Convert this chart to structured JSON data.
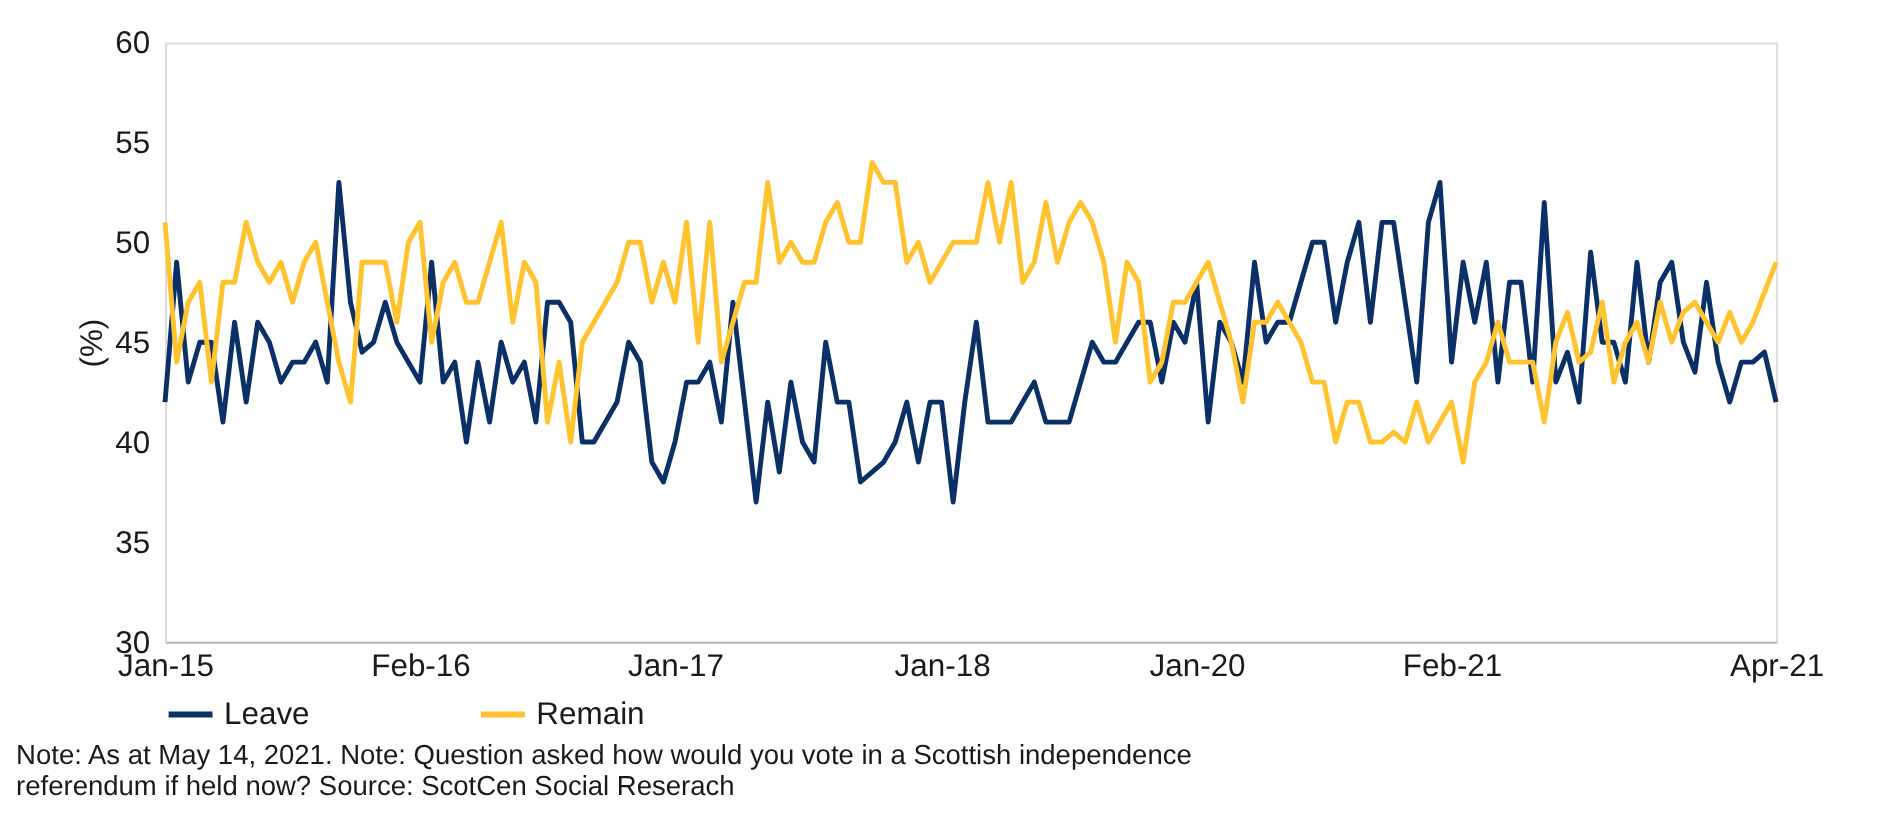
{
  "chart_data": {
    "type": "line",
    "categories": [
      "Jan-15",
      null,
      null,
      null,
      null,
      null,
      null,
      null,
      null,
      null,
      null,
      null,
      null,
      null,
      null,
      null,
      null,
      null,
      null,
      null,
      null,
      null,
      "Feb-16",
      null,
      null,
      null,
      null,
      null,
      null,
      null,
      null,
      null,
      null,
      null,
      null,
      null,
      null,
      null,
      null,
      null,
      null,
      null,
      null,
      null,
      "Jan-17",
      null,
      null,
      null,
      null,
      null,
      null,
      null,
      null,
      null,
      null,
      null,
      null,
      null,
      null,
      null,
      null,
      null,
      null,
      null,
      null,
      null,
      null,
      "Jan-18",
      null,
      null,
      null,
      null,
      null,
      null,
      null,
      null,
      null,
      null,
      null,
      null,
      null,
      null,
      null,
      null,
      null,
      null,
      null,
      null,
      null,
      "Jan-20",
      null,
      null,
      null,
      null,
      null,
      null,
      null,
      null,
      null,
      null,
      null,
      null,
      null,
      null,
      null,
      null,
      null,
      null,
      null,
      null,
      null,
      "Feb-21",
      null,
      null,
      null,
      null,
      null,
      null,
      null,
      null,
      null,
      null,
      null,
      null,
      null,
      null,
      null,
      null,
      null,
      null,
      null,
      null,
      null,
      null,
      null,
      null,
      null,
      null,
      null,
      "Apr-21"
    ],
    "series": [
      {
        "name": "Leave",
        "color": "#0a3066",
        "values": [
          42,
          49,
          43,
          45,
          45,
          41,
          46,
          42,
          46,
          45,
          43,
          44,
          44,
          45,
          43,
          53,
          47,
          44.5,
          45,
          47,
          45,
          44,
          43,
          49,
          43,
          44,
          40,
          44,
          41,
          45,
          43,
          44,
          41,
          47,
          47,
          46,
          40,
          40,
          41,
          42,
          45,
          44,
          39,
          38,
          40,
          43,
          43,
          44,
          41,
          47,
          42,
          37,
          42,
          38.5,
          43,
          40,
          39,
          45,
          42,
          42,
          38,
          38.5,
          39,
          40,
          42,
          39,
          42,
          42,
          37,
          42,
          46,
          41,
          41,
          41,
          42,
          43,
          41,
          41,
          41,
          43,
          45,
          44,
          44,
          45,
          46,
          46,
          43,
          46,
          45,
          48,
          41,
          46,
          45,
          43,
          49,
          45,
          46,
          46,
          48,
          50,
          50,
          46,
          49,
          51,
          46,
          51,
          51,
          47,
          43,
          51,
          53,
          44,
          49,
          46,
          49,
          43,
          48,
          48,
          43,
          52,
          43,
          44.5,
          42,
          49.5,
          45,
          45,
          43,
          49,
          44,
          48,
          49,
          45,
          43.5,
          48,
          44,
          42,
          44,
          44,
          44.5,
          42
        ]
      },
      {
        "name": "Remain",
        "color": "#fec32e",
        "values": [
          51,
          44,
          47,
          48,
          43,
          48,
          48,
          51,
          49,
          48,
          49,
          47,
          49,
          50,
          47,
          44,
          42,
          49,
          49,
          49,
          46,
          50,
          51,
          45,
          48,
          49,
          47,
          47,
          49,
          51,
          46,
          49,
          48,
          41,
          44,
          40,
          45,
          46,
          47,
          48,
          50,
          50,
          47,
          49,
          47,
          51,
          45,
          51,
          44,
          46,
          48,
          48,
          53,
          49,
          50,
          49,
          49,
          51,
          52,
          50,
          50,
          54,
          53,
          53,
          49,
          50,
          48,
          49,
          50,
          50,
          50,
          53,
          50,
          53,
          48,
          49,
          52,
          49,
          51,
          52,
          51,
          49,
          45,
          49,
          48,
          43,
          44,
          47,
          47,
          48,
          49,
          47,
          45,
          42,
          46,
          46,
          47,
          46,
          45,
          43,
          43,
          40,
          42,
          42,
          40,
          40,
          40.5,
          40,
          42,
          40,
          41,
          42,
          39,
          43,
          44,
          46,
          44,
          44,
          44,
          41,
          45,
          46.5,
          44,
          44.5,
          47,
          43,
          45,
          46,
          44,
          47,
          45,
          46.5,
          47,
          46,
          45,
          46.5,
          45,
          46,
          47.5,
          49
        ]
      }
    ],
    "ylabel": "(%)",
    "ylim": [
      30,
      60
    ],
    "yticks": [
      30,
      35,
      40,
      45,
      50,
      55,
      60
    ],
    "grid": false,
    "legend": "bottom",
    "marker": "none",
    "line_style": "solid",
    "annotations": [
      "Note: As at May 14, 2021. Note: Question asked how would you vote in a Scottish independence referendum if held now? Source: ScotCen Social Reserach"
    ]
  }
}
